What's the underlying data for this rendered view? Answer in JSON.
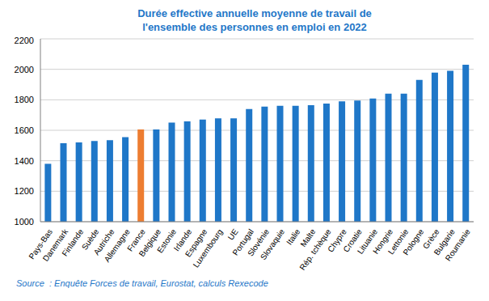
{
  "chart_data": {
    "type": "bar",
    "title": "Durée effective annuelle moyenne de travail de l'ensemble des personnes en emploi en 2022",
    "source": "Source  : Enquête Forces de travail, Eurostat, calculs Rexecode",
    "categories": [
      "Pays-Bas",
      "Danemark",
      "Finlande",
      "Suède",
      "Autriche",
      "Allemagne",
      "France",
      "Belgique",
      "Estonie",
      "Irlande",
      "Espagne",
      "Luxembourg",
      "UE",
      "Portugal",
      "Slovénie",
      "Slovaquie",
      "Italie",
      "Malte",
      "Rép. tchèque",
      "Chypre",
      "Croatie",
      "Lituanie",
      "Hongrie",
      "Lettonie",
      "Pologne",
      "Grèce",
      "Bulgarie",
      "Roumanie"
    ],
    "values": [
      1380,
      1515,
      1520,
      1530,
      1535,
      1555,
      1605,
      1605,
      1650,
      1658,
      1670,
      1678,
      1678,
      1740,
      1755,
      1760,
      1760,
      1765,
      1775,
      1790,
      1795,
      1808,
      1840,
      1840,
      1930,
      1978,
      1990,
      2030
    ],
    "colors": [
      "#1f77c8",
      "#1f77c8",
      "#1f77c8",
      "#1f77c8",
      "#1f77c8",
      "#1f77c8",
      "#ed7d31",
      "#1f77c8",
      "#1f77c8",
      "#1f77c8",
      "#1f77c8",
      "#1f77c8",
      "#1f77c8",
      "#1f77c8",
      "#1f77c8",
      "#1f77c8",
      "#1f77c8",
      "#1f77c8",
      "#1f77c8",
      "#1f77c8",
      "#1f77c8",
      "#1f77c8",
      "#1f77c8",
      "#1f77c8",
      "#1f77c8",
      "#1f77c8",
      "#1f77c8",
      "#1f77c8"
    ],
    "ylim": [
      1000,
      2200
    ],
    "yticks": [
      1000,
      1200,
      1400,
      1600,
      1800,
      2000,
      2200
    ],
    "grid": true
  }
}
